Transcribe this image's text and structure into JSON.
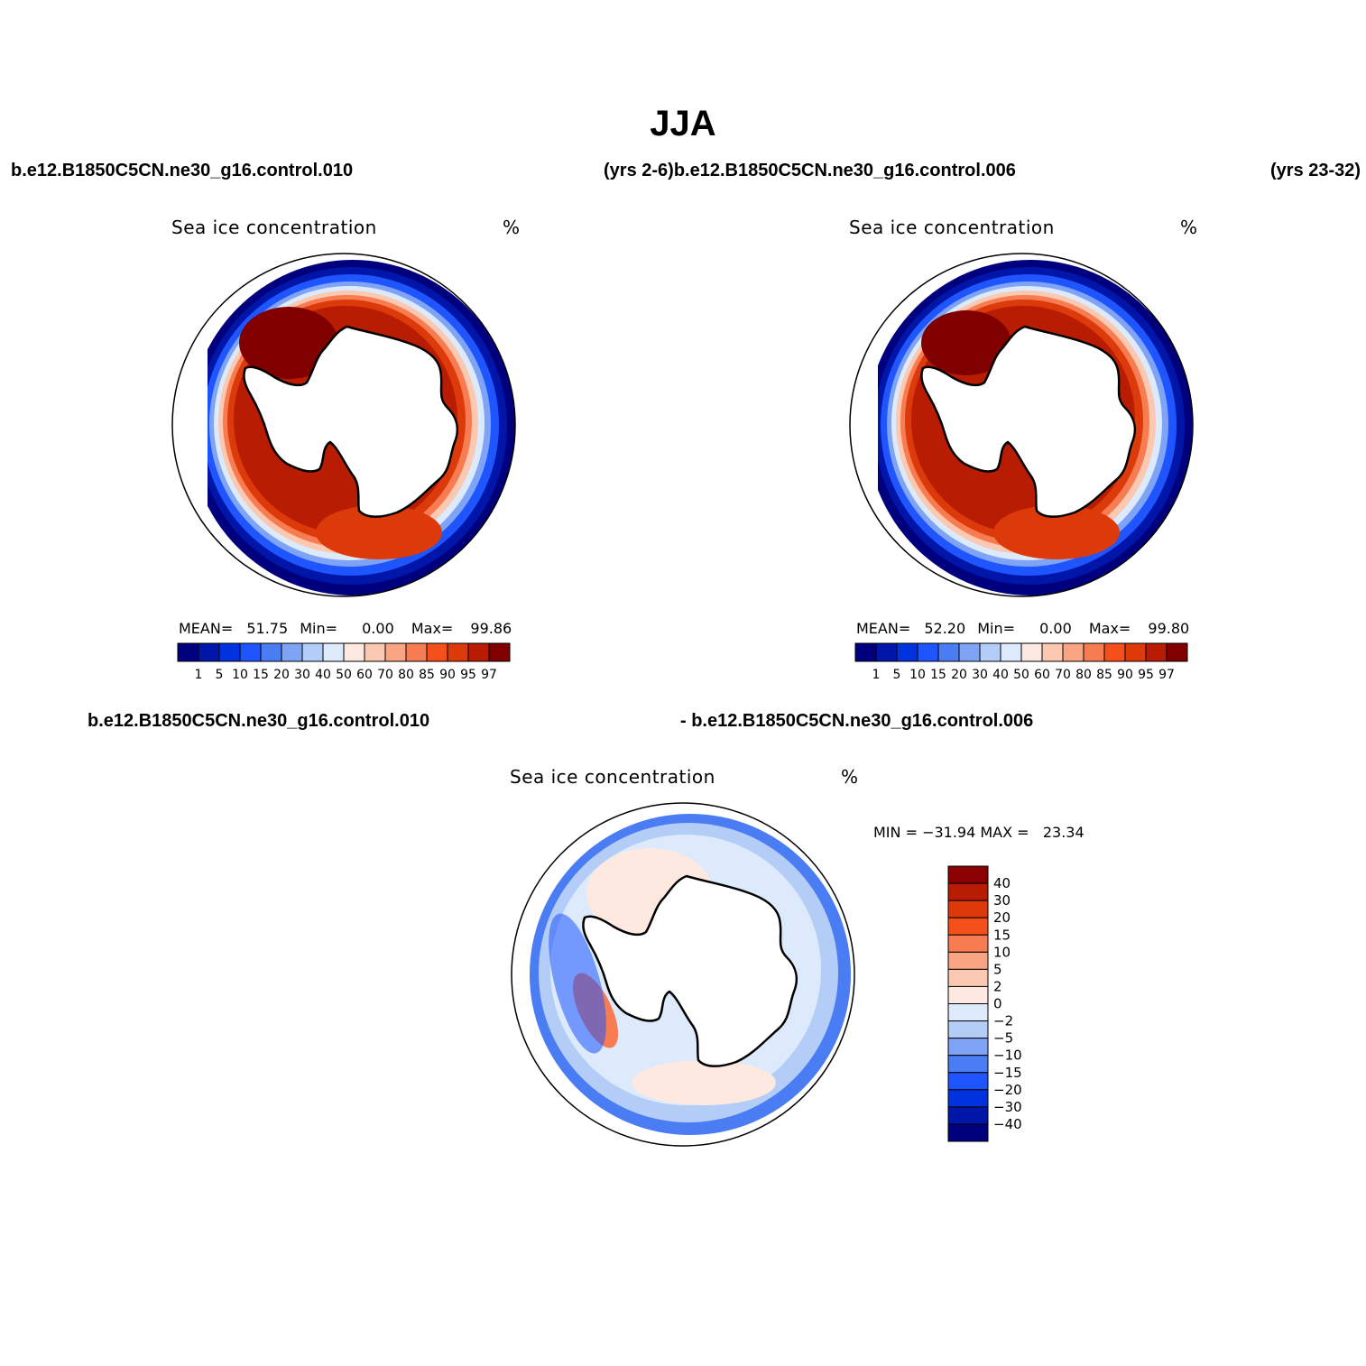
{
  "title": "JJA",
  "header": {
    "case1": "b.e12.B1850C5CN.ne30_g16.control.010",
    "years_case2": "(yrs 2-6)b.e12.B1850C5CN.ne30_g16.control.006",
    "years_right": "(yrs 23-32)"
  },
  "panels": [
    {
      "label": "Sea ice concentration",
      "unit": "%",
      "stats": {
        "mean_label": "MEAN=",
        "mean": "51.75",
        "min_label": "Min=",
        "min": "0.00",
        "max_label": "Max=",
        "max": "99.86"
      }
    },
    {
      "label": "Sea ice concentration",
      "unit": "%",
      "stats": {
        "mean_label": "MEAN=",
        "mean": "52.20",
        "min_label": "Min=",
        "min": "0.00",
        "max_label": "Max=",
        "max": "99.80"
      }
    }
  ],
  "diff": {
    "case_left": "b.e12.B1850C5CN.ne30_g16.control.010",
    "case_right": "- b.e12.B1850C5CN.ne30_g16.control.006",
    "label": "Sea ice concentration",
    "unit": "%",
    "minmax": "MIN = −31.94 MAX =   23.34"
  },
  "colorbar_abs": {
    "colors": [
      "#00007f",
      "#0016a8",
      "#0033dd",
      "#1e55ff",
      "#4a7cf3",
      "#7fa3f5",
      "#b4cdf7",
      "#dceafc",
      "#fde9df",
      "#fbc9b2",
      "#f9a584",
      "#f87c52",
      "#f5501c",
      "#dc3a0a",
      "#b81d03",
      "#800000"
    ],
    "labels": [
      "1",
      "5",
      "10",
      "15",
      "20",
      "30",
      "40",
      "50",
      "60",
      "70",
      "80",
      "85",
      "90",
      "95",
      "97"
    ]
  },
  "colorbar_diff": {
    "colors": [
      "#8b0000",
      "#b81d03",
      "#dc3a0a",
      "#f5501c",
      "#f87c52",
      "#f9a584",
      "#fbc9b2",
      "#fde9df",
      "#dceafc",
      "#b4cdf7",
      "#7fa3f5",
      "#4a7cf3",
      "#1e55ff",
      "#0033dd",
      "#0016a8",
      "#00007f"
    ],
    "labels": [
      "40",
      "30",
      "20",
      "15",
      "10",
      "5",
      "2",
      "0",
      "−2",
      "−5",
      "−10",
      "−15",
      "−20",
      "−30",
      "−40"
    ]
  }
}
